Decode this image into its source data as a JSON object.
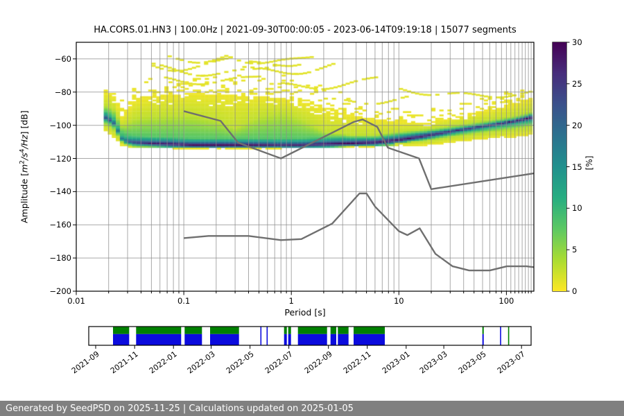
{
  "header": {
    "title": "HA.CORS.01.HN3 | 100.0Hz | 2021-09-30T00:00:05 - 2023-06-14T09:19:18 | 15077 segments"
  },
  "footer": {
    "text": "Generated by SeedPSD on 2025-11-25 | Calculations updated on 2025-01-05",
    "bg": "#808080",
    "fg": "#ffffff"
  },
  "colors": {
    "background": "#ffffff",
    "frame": "#000000",
    "grid": "#8c8c8c",
    "noise_model": "#6f6f6f",
    "timeline_green": "#008000",
    "timeline_blue": "#0b0bdd",
    "viridis": [
      "#440154",
      "#472d7b",
      "#3b518b",
      "#2c718e",
      "#21908d",
      "#27ad81",
      "#5cc863",
      "#aadc32",
      "#fde725"
    ]
  },
  "axes": {
    "xlabel": "Period [s]",
    "ylabel": {
      "prefix": "Amplitude [",
      "m": "m",
      "sup1": "2",
      "s": "/s",
      "sup2": "4",
      "hz": "/Hz",
      "suffix": "] [dB]"
    },
    "x_ticks": [
      {
        "v": 0.01,
        "label": "0.01"
      },
      {
        "v": 0.1,
        "label": "0.1"
      },
      {
        "v": 1,
        "label": "1"
      },
      {
        "v": 10,
        "label": "10"
      },
      {
        "v": 100,
        "label": "100"
      }
    ],
    "y_ticks": [
      {
        "v": -60,
        "label": "−60"
      },
      {
        "v": -80,
        "label": "−80"
      },
      {
        "v": -100,
        "label": "−100"
      },
      {
        "v": -120,
        "label": "−120"
      },
      {
        "v": -140,
        "label": "−140"
      },
      {
        "v": -160,
        "label": "−160"
      },
      {
        "v": -180,
        "label": "−180"
      },
      {
        "v": -200,
        "label": "−200"
      }
    ]
  },
  "colorbar": {
    "label": "[%]",
    "vmin": 0,
    "vmax": 30,
    "ticks": [
      {
        "v": 0,
        "label": "0"
      },
      {
        "v": 5,
        "label": "5"
      },
      {
        "v": 10,
        "label": "10"
      },
      {
        "v": 15,
        "label": "15"
      },
      {
        "v": 20,
        "label": "20"
      },
      {
        "v": 25,
        "label": "25"
      },
      {
        "v": 30,
        "label": "30"
      }
    ]
  },
  "chart_data": {
    "type": "heatmap",
    "title": "HA.CORS.01.HN3 | 100.0Hz | 2021-09-30T00:00:05 - 2023-06-14T09:19:18 | 15077 segments",
    "station": "HA.CORS.01.HN3",
    "sampling_rate_hz": 100.0,
    "segments_count": 15077,
    "time_range": [
      "2021-09-30T00:00:05",
      "2023-06-14T09:19:18"
    ],
    "xlabel": "Period [s]",
    "ylabel": "Amplitude [m^2/s^4/Hz] [dB]",
    "xlim": [
      0.01,
      179
    ],
    "ylim": [
      -200,
      -50
    ],
    "xscale": "log",
    "grid": true,
    "colorbar": {
      "label": "[%]",
      "range": [
        0,
        30
      ],
      "cmap": "viridis_r"
    },
    "histogram_model": [
      {
        "t": 0.018,
        "sparse": -79,
        "dense": -80,
        "green": -88,
        "mode": -95,
        "bottom": -103,
        "peak": 25
      },
      {
        "t": 0.022,
        "sparse": -80,
        "dense": -82,
        "green": -90,
        "mode": -98,
        "bottom": -107,
        "peak": 22
      },
      {
        "t": 0.027,
        "sparse": -82,
        "dense": -96,
        "green": -101,
        "mode": -109,
        "bottom": -112.5,
        "peak": 18
      },
      {
        "t": 0.035,
        "sparse": -78,
        "dense": -85,
        "green": -96,
        "mode": -110.5,
        "bottom": -113.5,
        "peak": 26
      },
      {
        "t": 0.05,
        "sparse": -72,
        "dense": -83,
        "green": -95,
        "mode": -111,
        "bottom": -113.5,
        "peak": 28
      },
      {
        "t": 0.08,
        "sparse": -64,
        "dense": -82,
        "green": -94,
        "mode": -111.5,
        "bottom": -114,
        "peak": 30
      },
      {
        "t": 0.12,
        "sparse": -61,
        "dense": -81,
        "green": -94,
        "mode": -112,
        "bottom": -114,
        "peak": 30
      },
      {
        "t": 0.2,
        "sparse": -63,
        "dense": -82,
        "green": -97,
        "mode": -112,
        "bottom": -114,
        "peak": 30
      },
      {
        "t": 0.3,
        "sparse": -64,
        "dense": -82,
        "green": -102,
        "mode": -112,
        "bottom": -114,
        "peak": 30
      },
      {
        "t": 0.5,
        "sparse": -62,
        "dense": -83,
        "green": -95,
        "mode": -112,
        "bottom": -114,
        "peak": 29
      },
      {
        "t": 0.8,
        "sparse": -62,
        "dense": -84,
        "green": -92.5,
        "mode": -112,
        "bottom": -114,
        "peak": 27
      },
      {
        "t": 1.2,
        "sparse": -68,
        "dense": -86,
        "green": -96,
        "mode": -112,
        "bottom": -113.5,
        "peak": 28
      },
      {
        "t": 2,
        "sparse": -74,
        "dense": -90,
        "green": -104,
        "mode": -111.5,
        "bottom": -113.5,
        "peak": 30
      },
      {
        "t": 3.5,
        "sparse": -80,
        "dense": -94,
        "green": -106,
        "mode": -111,
        "bottom": -113,
        "peak": 30
      },
      {
        "t": 6,
        "sparse": -86,
        "dense": -97,
        "green": -106,
        "mode": -110.5,
        "bottom": -113,
        "peak": 30
      },
      {
        "t": 10,
        "sparse": -89,
        "dense": -98,
        "green": -104,
        "mode": -109,
        "bottom": -112.5,
        "peak": 30
      },
      {
        "t": 18,
        "sparse": -90,
        "dense": -99,
        "green": -102.5,
        "mode": -106.5,
        "bottom": -112,
        "peak": 28
      },
      {
        "t": 35,
        "sparse": -86,
        "dense": -95,
        "green": -100,
        "mode": -103,
        "bottom": -110,
        "peak": 27
      },
      {
        "t": 70,
        "sparse": -82,
        "dense": -91,
        "green": -97,
        "mode": -100,
        "bottom": -108,
        "peak": 27
      },
      {
        "t": 120,
        "sparse": -79,
        "dense": -87,
        "green": -94.5,
        "mode": -97.5,
        "bottom": -107,
        "peak": 29
      },
      {
        "t": 170,
        "sparse": -77,
        "dense": -84,
        "green": -92,
        "mode": -95.5,
        "bottom": -106,
        "peak": 30
      }
    ],
    "outlier_arcs": [
      {
        "t0": 0.05,
        "t1": 0.45,
        "tp": 0.13,
        "peak": -61,
        "curv": 26
      },
      {
        "t0": 0.22,
        "t1": 1.6,
        "tp": 0.62,
        "peak": -62,
        "curv": 24
      },
      {
        "t0": 0.35,
        "t1": 2.5,
        "tp": 0.9,
        "peak": -68,
        "curv": 20
      },
      {
        "t0": 0.05,
        "t1": 0.7,
        "tp": 0.18,
        "peak": -69,
        "curv": 18
      },
      {
        "t0": 0.8,
        "t1": 6,
        "tp": 1.6,
        "peak": -77,
        "curv": 16
      },
      {
        "t0": 2,
        "t1": 12,
        "tp": 4.5,
        "peak": -86,
        "curv": 12
      },
      {
        "t0": 10,
        "t1": 170,
        "tp": 60,
        "peak": -82,
        "curv": 6
      },
      {
        "t0": 0.05,
        "t1": 0.3,
        "tp": 0.09,
        "peak": -66,
        "curv": 30
      },
      {
        "t0": 0.4,
        "t1": 1.2,
        "tp": 0.7,
        "peak": -64,
        "curv": 35
      },
      {
        "t0": 0.06,
        "t1": 0.5,
        "tp": 0.15,
        "peak": -74,
        "curv": 14
      }
    ],
    "noise_models": {
      "nhnm": {
        "periods": [
          0.1,
          0.22,
          0.32,
          0.8,
          3.8,
          4.6,
          6.3,
          7.9,
          15.4,
          20,
          179
        ],
        "db": [
          -91.5,
          -97.4,
          -110.5,
          -120,
          -98,
          -96.5,
          -101,
          -113.5,
          -120,
          -138.5,
          -129
        ]
      },
      "nlnm": {
        "periods": [
          0.1,
          0.17,
          0.4,
          0.8,
          1.24,
          2.4,
          4.3,
          5,
          6,
          10,
          12,
          15.6,
          21.9,
          31.6,
          45,
          70,
          101,
          154,
          179
        ],
        "db": [
          -168,
          -166.7,
          -166.7,
          -169.2,
          -168.6,
          -159.2,
          -141.1,
          -141.1,
          -149,
          -163.8,
          -166.2,
          -162.1,
          -177.5,
          -185,
          -187.5,
          -187.5,
          -185,
          -185,
          -185.5
        ]
      }
    },
    "timeline": {
      "tick_labels": [
        {
          "label": "2021-09",
          "f": 0.0157
        },
        {
          "label": "2021-11",
          "f": 0.1037
        },
        {
          "label": "2022-01",
          "f": 0.1916
        },
        {
          "label": "2022-03",
          "f": 0.2767
        },
        {
          "label": "2022-05",
          "f": 0.3646
        },
        {
          "label": "2022-07",
          "f": 0.4524
        },
        {
          "label": "2022-09",
          "f": 0.5418
        },
        {
          "label": "2022-11",
          "f": 0.6297
        },
        {
          "label": "2023-01",
          "f": 0.7176
        },
        {
          "label": "2023-03",
          "f": 0.8026
        },
        {
          "label": "2023-05",
          "f": 0.8905
        },
        {
          "label": "2023-07",
          "f": 0.9784
        }
      ],
      "segments": [
        {
          "f0": 0.0549,
          "f1": 0.0914,
          "kind": "both"
        },
        {
          "f0": 0.1071,
          "f1": 0.209,
          "kind": "both"
        },
        {
          "f0": 0.2168,
          "f1": 0.256,
          "kind": "both"
        },
        {
          "f0": 0.2743,
          "f1": 0.3397,
          "kind": "both"
        },
        {
          "f0": 0.388,
          "f1": 0.3905,
          "kind": "blue"
        },
        {
          "f0": 0.4021,
          "f1": 0.4046,
          "kind": "blue"
        },
        {
          "f0": 0.4415,
          "f1": 0.4478,
          "kind": "both"
        },
        {
          "f0": 0.4509,
          "f1": 0.4572,
          "kind": "both"
        },
        {
          "f0": 0.4729,
          "f1": 0.5388,
          "kind": "both"
        },
        {
          "f0": 0.5466,
          "f1": 0.5596,
          "kind": "both"
        },
        {
          "f0": 0.5632,
          "f1": 0.5873,
          "kind": "both"
        },
        {
          "f0": 0.5987,
          "f1": 0.6693,
          "kind": "both"
        },
        {
          "f0": 0.8898,
          "f1": 0.893,
          "kind": "both"
        },
        {
          "f0": 0.9298,
          "f1": 0.9318,
          "kind": "blue"
        },
        {
          "f0": 0.948,
          "f1": 0.95,
          "kind": "green"
        }
      ]
    }
  }
}
